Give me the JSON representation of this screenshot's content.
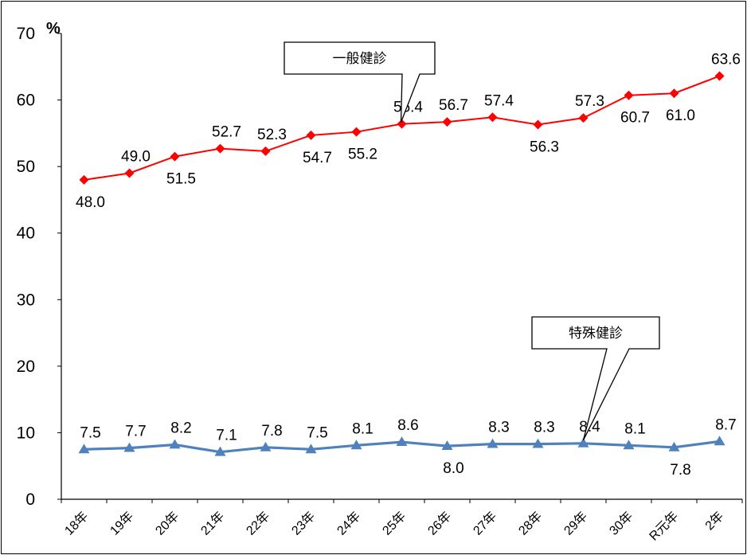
{
  "chart_data": {
    "type": "line",
    "unit_label": "%",
    "categories": [
      "18年",
      "19年",
      "20年",
      "21年",
      "22年",
      "23年",
      "24年",
      "25年",
      "26年",
      "27年",
      "28年",
      "29年",
      "30年",
      "R元年",
      "2年"
    ],
    "ylim": [
      0,
      70
    ],
    "yticks": [
      0,
      10,
      20,
      30,
      40,
      50,
      60,
      70
    ],
    "grid": false,
    "series": [
      {
        "name": "一般健診",
        "color": "#ff0000",
        "marker": "diamond",
        "values": [
          48.0,
          49.0,
          51.5,
          52.7,
          52.3,
          54.7,
          55.2,
          56.4,
          56.7,
          57.4,
          56.3,
          57.3,
          60.7,
          61.0,
          63.6
        ],
        "labels": [
          "48.0",
          "49.0",
          "51.5",
          "52.7",
          "52.3",
          "54.7",
          "55.2",
          "56.4",
          "56.7",
          "57.4",
          "56.3",
          "57.3",
          "60.7",
          "61.0",
          "63.6"
        ],
        "label_positions": [
          "below",
          "above",
          "below",
          "above",
          "above",
          "below",
          "below",
          "above",
          "above",
          "above",
          "below",
          "above",
          "below",
          "below",
          "above"
        ]
      },
      {
        "name": "特殊健診",
        "color": "#4f81bd",
        "marker": "triangle",
        "values": [
          7.5,
          7.7,
          8.2,
          7.1,
          7.8,
          7.5,
          8.1,
          8.6,
          8.0,
          8.3,
          8.3,
          8.4,
          8.1,
          7.8,
          8.7
        ],
        "labels": [
          "7.5",
          "7.7",
          "8.2",
          "7.1",
          "7.8",
          "7.5",
          "8.1",
          "8.6",
          "8.0",
          "8.3",
          "8.3",
          "8.4",
          "8.1",
          "7.8",
          "8.7"
        ],
        "label_positions": [
          "above",
          "above",
          "above",
          "above",
          "above",
          "above",
          "above",
          "above",
          "below",
          "above",
          "above",
          "above",
          "above",
          "below",
          "above"
        ]
      }
    ],
    "annotations": [
      {
        "text": "一般健診",
        "series": 0,
        "points_to_category": "25年"
      },
      {
        "text": "特殊健診",
        "series": 1,
        "points_to_category": "29年"
      }
    ]
  }
}
